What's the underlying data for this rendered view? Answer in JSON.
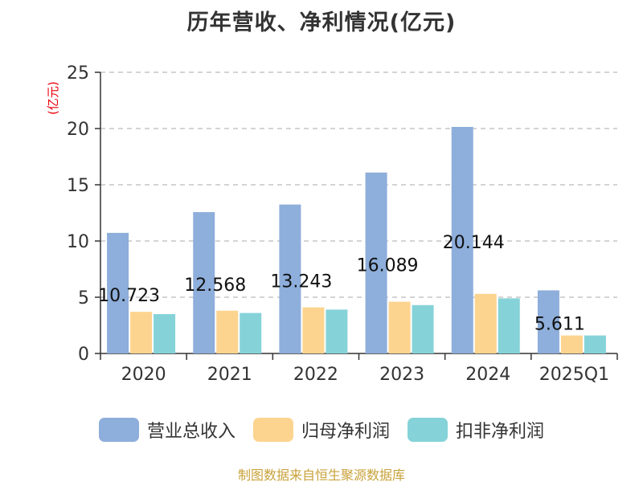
{
  "title": "历年营收、净利情况(亿元)",
  "unit_label": "(亿元)",
  "source_note": "制图数据来自恒生聚源数据库",
  "colors": {
    "revenue": "#8eaedb",
    "net_profit": "#fdd48f",
    "deducted_net_profit": "#85d3d8",
    "grid": "#bbbbbb",
    "axis": "#333333",
    "text": "#333333",
    "unit": "#e8000b",
    "source": "#c8a23a"
  },
  "chart_data": {
    "type": "bar",
    "title": "历年营收、净利情况(亿元)",
    "ylabel": "(亿元)",
    "xlabel": "",
    "categories": [
      "2020",
      "2021",
      "2022",
      "2023",
      "2024",
      "2025Q1"
    ],
    "ylim": [
      0,
      25
    ],
    "yticks": [
      0,
      5,
      10,
      15,
      20,
      25
    ],
    "grid": true,
    "legend_position": "bottom",
    "series": [
      {
        "name": "营业总收入",
        "values": [
          10.723,
          12.568,
          13.243,
          16.089,
          20.144,
          5.611
        ],
        "labels": [
          "10.723",
          "12.568",
          "13.243",
          "16.089",
          "20.144",
          "5.611"
        ]
      },
      {
        "name": "归母净利润",
        "values": [
          3.7,
          3.8,
          4.1,
          4.6,
          5.3,
          1.6
        ]
      },
      {
        "name": "扣非净利润",
        "values": [
          3.5,
          3.6,
          3.9,
          4.3,
          4.9,
          1.6
        ]
      }
    ]
  }
}
